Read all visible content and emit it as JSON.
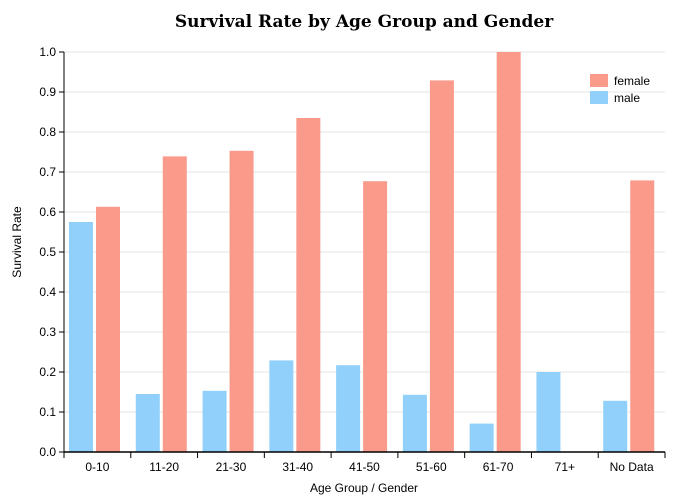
{
  "chart_data": {
    "type": "bar",
    "title": "Survival Rate by Age Group and Gender",
    "xlabel": "Age Group / Gender",
    "ylabel": "Survival Rate",
    "ylim": [
      0,
      1.0
    ],
    "yticks": [
      "0.0",
      "0.1",
      "0.2",
      "0.3",
      "0.4",
      "0.5",
      "0.6",
      "0.7",
      "0.8",
      "0.9",
      "1.0"
    ],
    "grid": true,
    "legend_position": "top-right",
    "categories": [
      "0-10",
      "11-20",
      "21-30",
      "31-40",
      "41-50",
      "51-60",
      "61-70",
      "71+",
      "No Data"
    ],
    "series": [
      {
        "name": "male",
        "color": "#91d0fa",
        "values": [
          0.575,
          0.145,
          0.153,
          0.229,
          0.217,
          0.143,
          0.071,
          0.2,
          0.128
        ]
      },
      {
        "name": "female",
        "color": "#fa9a8a",
        "values": [
          0.613,
          0.739,
          0.753,
          0.835,
          0.677,
          0.929,
          1.0,
          0,
          0.679
        ]
      }
    ]
  }
}
